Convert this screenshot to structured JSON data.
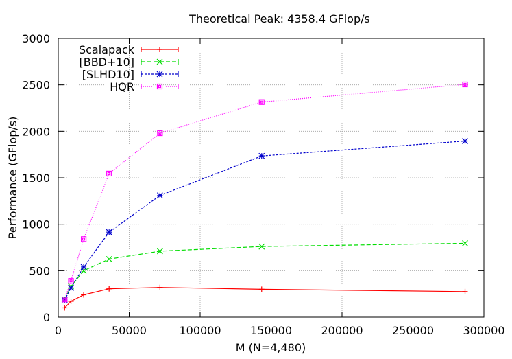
{
  "chart_data": {
    "type": "line",
    "title": "Theoretical Peak: 4358.4 GFlop/s",
    "xlabel": "M (N=4,480)",
    "ylabel": "Performance (GFlop/s)",
    "xlim": [
      0,
      300000
    ],
    "ylim": [
      0,
      3000
    ],
    "x_ticks": [
      0,
      50000,
      100000,
      150000,
      200000,
      250000,
      300000
    ],
    "x_tick_labels": [
      "0",
      "50000",
      "100000",
      "150000",
      "200000",
      "250000",
      "300000"
    ],
    "y_ticks": [
      0,
      500,
      1000,
      1500,
      2000,
      2500,
      3000
    ],
    "y_tick_labels": [
      "0",
      "500",
      "1000",
      "1500",
      "2000",
      "2500",
      "3000"
    ],
    "grid": true,
    "legend_position": "top-left",
    "x": [
      4480,
      8960,
      17920,
      35840,
      71680,
      143360,
      286720
    ],
    "series": [
      {
        "name": "Scalapack",
        "color": "#ff0000",
        "marker": "plus",
        "dash": "none",
        "values": [
          100,
          170,
          240,
          305,
          320,
          300,
          275
        ]
      },
      {
        "name": "[BBD+10]",
        "color": "#00dd00",
        "marker": "x",
        "dash": "6,3",
        "values": [
          190,
          330,
          500,
          625,
          710,
          760,
          795
        ]
      },
      {
        "name": "[SLHD10]",
        "color": "#0000cc",
        "marker": "star",
        "dash": "3,2",
        "values": [
          185,
          315,
          540,
          915,
          1310,
          1735,
          1895
        ]
      },
      {
        "name": "HQR",
        "color": "#ff00ff",
        "marker": "square",
        "dash": "1,2",
        "values": [
          190,
          390,
          840,
          1545,
          1980,
          2315,
          2505
        ]
      }
    ]
  }
}
